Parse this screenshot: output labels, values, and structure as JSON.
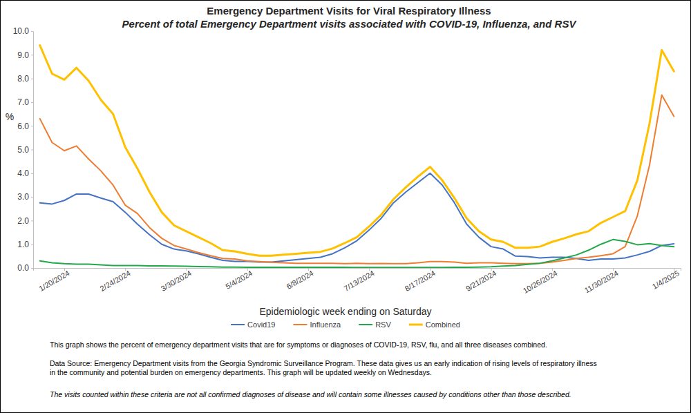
{
  "chart_data": {
    "type": "line",
    "title": "Emergency Department Visits for Viral Respiratory Illness",
    "subtitle": "Percent of total Emergency Department visits associated with COVID-19, Influenza, and RSV",
    "x_label": "Epidemiologic week ending on Saturday",
    "y_label": "%",
    "categories": [
      null,
      null,
      "1/20/2024",
      null,
      null,
      null,
      null,
      "2/24/2024",
      null,
      null,
      null,
      null,
      "3/30/2024",
      null,
      null,
      null,
      null,
      "5/4/2024",
      null,
      null,
      null,
      null,
      "6/8/2024",
      null,
      null,
      null,
      null,
      "7/13/2024",
      null,
      null,
      null,
      null,
      "8/17/2024",
      null,
      null,
      null,
      null,
      "9/21/2024",
      null,
      null,
      null,
      null,
      "10/26/2024",
      null,
      null,
      null,
      null,
      "11/30/2024",
      null,
      null,
      null,
      null,
      "1/4/2025"
    ],
    "series": [
      {
        "name": "Covid19",
        "color": "#4472c4",
        "values": [
          2.75,
          2.7,
          2.85,
          3.12,
          3.12,
          2.95,
          2.8,
          2.35,
          1.85,
          1.4,
          1.0,
          0.8,
          0.72,
          0.6,
          0.45,
          0.32,
          0.28,
          0.28,
          0.25,
          0.25,
          0.3,
          0.35,
          0.4,
          0.45,
          0.6,
          0.85,
          1.15,
          1.6,
          2.1,
          2.75,
          3.2,
          3.6,
          4.0,
          3.5,
          2.75,
          1.85,
          1.3,
          0.9,
          0.8,
          0.5,
          0.48,
          0.42,
          0.45,
          0.45,
          0.4,
          0.32,
          0.38,
          0.38,
          0.42,
          0.55,
          0.7,
          0.95,
          1.02
        ]
      },
      {
        "name": "Influenza",
        "color": "#ed7d31",
        "values": [
          6.3,
          5.3,
          4.95,
          5.15,
          4.6,
          4.1,
          3.5,
          2.65,
          2.3,
          1.7,
          1.25,
          0.95,
          0.8,
          0.65,
          0.52,
          0.4,
          0.38,
          0.3,
          0.27,
          0.24,
          0.22,
          0.2,
          0.2,
          0.2,
          0.2,
          0.18,
          0.2,
          0.18,
          0.19,
          0.18,
          0.18,
          0.22,
          0.27,
          0.27,
          0.25,
          0.2,
          0.22,
          0.22,
          0.2,
          0.18,
          0.18,
          0.2,
          0.25,
          0.32,
          0.4,
          0.45,
          0.52,
          0.6,
          0.9,
          2.2,
          4.35,
          7.3,
          6.4
        ]
      },
      {
        "name": "RSV",
        "color": "#22a84a",
        "values": [
          0.3,
          0.22,
          0.18,
          0.16,
          0.16,
          0.13,
          0.1,
          0.1,
          0.1,
          0.09,
          0.09,
          0.08,
          0.07,
          0.06,
          0.05,
          0.04,
          0.04,
          0.03,
          0.03,
          0.03,
          0.03,
          0.03,
          0.03,
          0.03,
          0.03,
          0.03,
          0.02,
          0.02,
          0.02,
          0.02,
          0.02,
          0.02,
          0.02,
          0.02,
          0.03,
          0.03,
          0.04,
          0.05,
          0.08,
          0.1,
          0.15,
          0.2,
          0.3,
          0.42,
          0.55,
          0.75,
          1.0,
          1.2,
          1.12,
          0.98,
          1.03,
          0.95,
          0.9
        ]
      },
      {
        "name": "Combined",
        "color": "#ffc000",
        "values": [
          9.4,
          8.2,
          7.95,
          8.45,
          7.9,
          7.1,
          6.5,
          5.1,
          4.2,
          3.2,
          2.35,
          1.8,
          1.55,
          1.3,
          1.05,
          0.75,
          0.7,
          0.6,
          0.52,
          0.52,
          0.56,
          0.6,
          0.64,
          0.68,
          0.82,
          1.05,
          1.3,
          1.75,
          2.25,
          2.9,
          3.4,
          3.85,
          4.27,
          3.7,
          2.95,
          2.1,
          1.55,
          1.2,
          1.1,
          0.85,
          0.85,
          0.9,
          1.1,
          1.25,
          1.42,
          1.55,
          1.9,
          2.15,
          2.4,
          3.7,
          6.1,
          9.2,
          8.3
        ]
      }
    ],
    "ylim": [
      0,
      10
    ],
    "yticks": [
      {
        "value": 0,
        "label": "0.0"
      },
      {
        "value": 1,
        "label": "1.0"
      },
      {
        "value": 2,
        "label": "2.0"
      },
      {
        "value": 3,
        "label": "3.0"
      },
      {
        "value": 4,
        "label": "4.0"
      },
      {
        "value": 5,
        "label": "5.0"
      },
      {
        "value": 6,
        "label": "6.0"
      },
      {
        "value": 7,
        "label": "7.0"
      },
      {
        "value": 8,
        "label": "8.0"
      },
      {
        "value": 9,
        "label": "9.0"
      },
      {
        "value": 10,
        "label": "10.0"
      }
    ],
    "grid": false,
    "legend": "bottom",
    "annotations": [
      "This graph shows the percent of emergency department visits that are for symptoms or diagnoses of COVID-19, RSV, flu, and all three diseases combined.",
      "Data Source: Emergency Department visits from the Georgia Syndromic Surveillance Program. These data gives us an early indication of rising levels of respiratory illness",
      "in the community and potential burden on emergency departments. This graph will be updated weekly on Wednesdays.",
      "The visits counted within these criteria are not all confirmed diagnoses of disease and will contain some illnesses caused by conditions other than those described."
    ]
  }
}
